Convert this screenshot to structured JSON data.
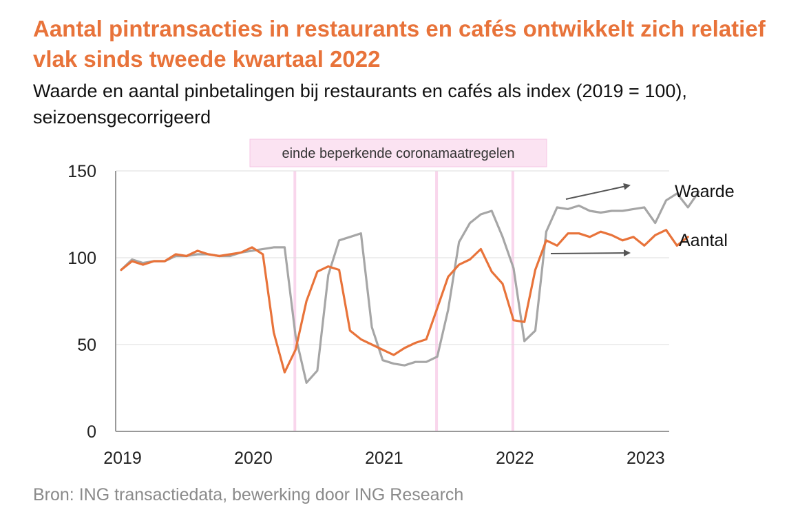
{
  "title": "Aantal pintransacties in restaurants en cafés ontwikkelt zich relatief vlak sinds tweede kwartaal 2022",
  "subtitle": "Waarde en aantal pinbetalingen bij restaurants en cafés als index (2019 = 100), seizoensgecorrigeerd",
  "source": "Bron: ING transactiedata, bewerking door ING Research",
  "colors": {
    "title": "#e8733a",
    "aantal": "#e8733a",
    "waarde": "#a6a6a6",
    "band": "#f9d6ec",
    "grid": "#dddddd"
  },
  "chart_data": {
    "type": "line",
    "x_start": "2019-01",
    "x_frequency": "monthly",
    "ylim": [
      0,
      150
    ],
    "yticks": [
      0,
      50,
      100,
      150
    ],
    "x_tick_labels": [
      "2019",
      "2020",
      "2021",
      "2022",
      "2023"
    ],
    "grid": true,
    "vertical_marker_label": "einde beperkende coronamaatregelen",
    "vertical_markers": [
      "2020-05",
      "2021-06",
      "2022-01"
    ],
    "series": [
      {
        "name": "Waarde",
        "color": "#a6a6a6",
        "values": [
          93,
          99,
          97,
          98,
          98,
          101,
          101,
          102,
          102,
          101,
          101,
          103,
          104,
          105,
          106,
          106,
          55,
          28,
          35,
          90,
          110,
          112,
          114,
          60,
          41,
          39,
          38,
          40,
          40,
          43,
          70,
          109,
          120,
          125,
          127,
          112,
          94,
          52,
          58,
          115,
          129,
          128,
          130,
          127,
          126,
          127,
          127,
          128,
          129,
          120,
          133,
          137,
          129,
          138
        ]
      },
      {
        "name": "Aantal",
        "color": "#e8733a",
        "values": [
          93,
          98,
          96,
          98,
          98,
          102,
          101,
          104,
          102,
          101,
          102,
          103,
          106,
          102,
          57,
          34,
          47,
          75,
          92,
          95,
          93,
          58,
          53,
          50,
          47,
          44,
          48,
          51,
          53,
          71,
          89,
          96,
          99,
          105,
          92,
          85,
          64,
          63,
          93,
          110,
          107,
          114,
          114,
          112,
          115,
          113,
          110,
          112,
          107,
          113,
          116,
          107,
          112
        ]
      }
    ],
    "annotations": [
      {
        "text": "Waarde",
        "trend": "rising"
      },
      {
        "text": "Aantal",
        "trend": "flat"
      }
    ]
  }
}
